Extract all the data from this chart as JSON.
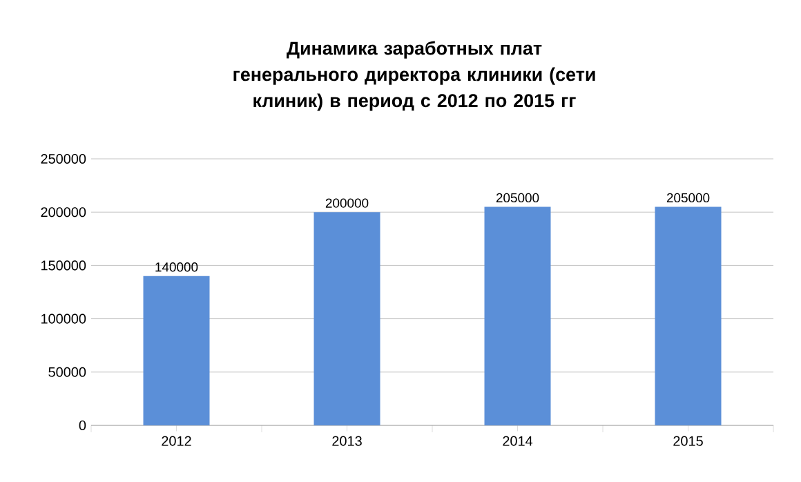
{
  "chart_data": {
    "type": "bar",
    "title": "Динамика заработных плат генерального директора клиники (сети клиник) в период с 2012 по 2015 гг",
    "categories": [
      "2012",
      "2013",
      "2014",
      "2015"
    ],
    "values": [
      140000,
      200000,
      205000,
      205000
    ],
    "color": "#5b8fd8",
    "ylim": [
      0,
      250000
    ],
    "yticks": [
      0,
      50000,
      100000,
      150000,
      200000,
      250000
    ],
    "grid": "y",
    "data_labels": true
  }
}
